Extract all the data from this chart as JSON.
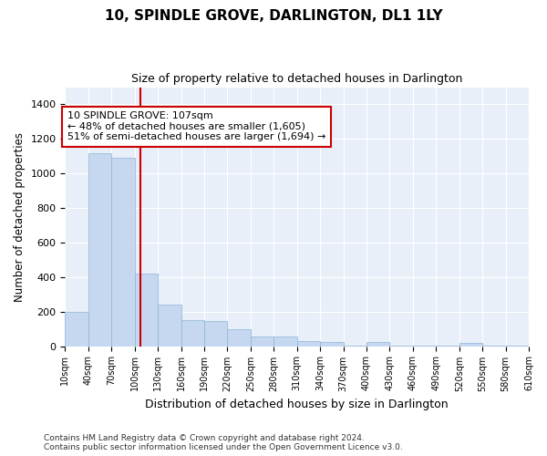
{
  "title": "10, SPINDLE GROVE, DARLINGTON, DL1 1LY",
  "subtitle": "Size of property relative to detached houses in Darlington",
  "xlabel": "Distribution of detached houses by size in Darlington",
  "ylabel": "Number of detached properties",
  "bar_color": "#c5d8f0",
  "bar_edge_color": "#8ab4d8",
  "background_color": "#e8eff8",
  "grid_color": "#ffffff",
  "red_line_x": 107,
  "annotation_text": "10 SPINDLE GROVE: 107sqm\n← 48% of detached houses are smaller (1,605)\n51% of semi-detached houses are larger (1,694) →",
  "annotation_box_color": "#ffffff",
  "annotation_box_edge": "#cc0000",
  "red_line_color": "#cc0000",
  "footer": "Contains HM Land Registry data © Crown copyright and database right 2024.\nContains public sector information licensed under the Open Government Licence v3.0.",
  "bins": [
    10,
    40,
    70,
    100,
    130,
    160,
    190,
    220,
    250,
    280,
    310,
    340,
    370,
    400,
    430,
    460,
    490,
    520,
    550,
    580,
    610
  ],
  "values": [
    200,
    1120,
    1090,
    420,
    240,
    150,
    145,
    100,
    55,
    55,
    30,
    25,
    5,
    25,
    5,
    5,
    5,
    20,
    5,
    5
  ],
  "ylim": [
    0,
    1500
  ],
  "yticks": [
    0,
    200,
    400,
    600,
    800,
    1000,
    1200,
    1400
  ],
  "figsize": [
    6.0,
    5.0
  ],
  "dpi": 100
}
